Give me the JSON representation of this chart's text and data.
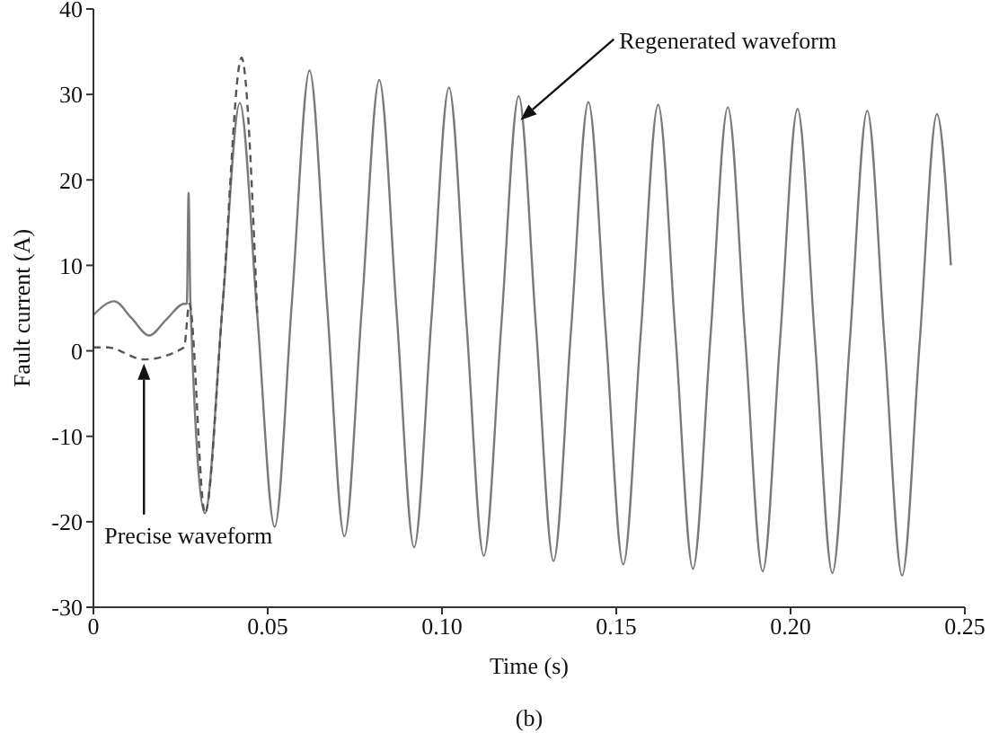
{
  "chart_data": {
    "type": "line",
    "xlabel": "Time (s)",
    "ylabel": "Fault current (A)",
    "xlim": [
      0,
      0.25
    ],
    "ylim": [
      -30,
      40
    ],
    "xticks": [
      0,
      0.05,
      {
        "value": 0.1,
        "label": "0.10"
      },
      0.15,
      {
        "value": 0.2,
        "label": "0.20"
      },
      0.25
    ],
    "yticks": [
      -30,
      -20,
      -10,
      0,
      10,
      20,
      30,
      40
    ],
    "marker": "none",
    "series": [
      {
        "color": "#7a7a7a",
        "line_style": "solid",
        "x": [
          0,
          0.006,
          0.011,
          0.016,
          0.021,
          0.026,
          0.0268,
          0.0273,
          0.0278,
          0.032,
          0.037,
          0.042,
          0.047,
          0.052,
          0.057,
          0.062,
          0.067,
          0.072,
          0.077,
          0.082,
          0.087,
          0.092,
          0.097,
          0.102,
          0.107,
          0.112,
          0.117,
          0.122,
          0.127,
          0.132,
          0.137,
          0.142,
          0.147,
          0.152,
          0.157,
          0.162,
          0.167,
          0.172,
          0.177,
          0.182,
          0.187,
          0.192,
          0.197,
          0.202,
          0.207,
          0.212,
          0.217,
          0.222,
          0.227,
          0.232,
          0.237,
          0.242,
          0.246
        ],
        "values": [
          4.2,
          5.8,
          3.8,
          1.8,
          3.7,
          5.5,
          5.5,
          18.5,
          6,
          -19,
          5,
          29,
          4.2,
          -20.6,
          6.1,
          32.8,
          5.6,
          -21.7,
          5,
          31.7,
          4.4,
          -23,
          3.9,
          30.8,
          3.4,
          -24,
          2.9,
          29.8,
          2.6,
          -24.6,
          2.3,
          29.1,
          2.1,
          -25,
          1.9,
          28.8,
          1.7,
          -25.5,
          1.5,
          28.5,
          1.4,
          -25.8,
          1.3,
          28.3,
          1.2,
          -26,
          1.1,
          28.1,
          0.9,
          -26.3,
          0.7,
          27.7,
          10
        ]
      },
      {
        "color": "#555555",
        "line_style": "dashed",
        "x": [
          0,
          0.004,
          0.0144,
          0.026,
          0.0275,
          0.032,
          0.037,
          0.0425,
          0.047
        ],
        "values": [
          0.4,
          0.4,
          -1.0,
          0.4,
          5.5,
          -19,
          5,
          34.3,
          4.2
        ]
      }
    ],
    "annotations": [
      {
        "text": "Regenerated waveform",
        "x": 0.1225,
        "y": 27
      },
      {
        "text": "Precise waveform",
        "x": 0.0145,
        "y": -1.5
      },
      "(b)"
    ]
  }
}
